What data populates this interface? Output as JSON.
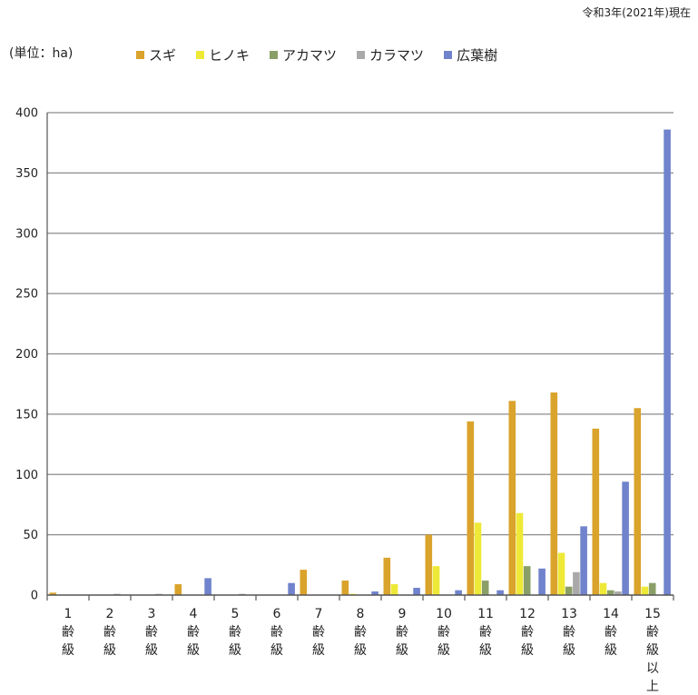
{
  "header": {
    "date_note": "令和3年(2021年)現在",
    "unit_label": "(単位：ha)"
  },
  "chart_data": {
    "type": "bar",
    "ylim": [
      0,
      400
    ],
    "yticks": [
      0,
      50,
      100,
      150,
      200,
      250,
      300,
      350,
      400
    ],
    "grid": true,
    "legend_position": "top",
    "categories": [
      [
        "1",
        "齢",
        "級"
      ],
      [
        "2",
        "齢",
        "級"
      ],
      [
        "3",
        "齢",
        "級"
      ],
      [
        "4",
        "齢",
        "級"
      ],
      [
        "5",
        "齢",
        "級"
      ],
      [
        "6",
        "齢",
        "級"
      ],
      [
        "7",
        "齢",
        "級"
      ],
      [
        "8",
        "齢",
        "級"
      ],
      [
        "9",
        "齢",
        "級"
      ],
      [
        "10",
        "齢",
        "級"
      ],
      [
        "11",
        "齢",
        "級"
      ],
      [
        "12",
        "齢",
        "級"
      ],
      [
        "13",
        "齢",
        "級"
      ],
      [
        "14",
        "齢",
        "級"
      ],
      [
        "15",
        "齢",
        "級",
        "以",
        "上"
      ]
    ],
    "series": [
      {
        "name": "スギ",
        "color": "#DAA32B",
        "values": [
          2,
          0,
          0,
          9,
          0,
          0,
          21,
          12,
          31,
          50,
          144,
          161,
          168,
          138,
          155
        ]
      },
      {
        "name": "ヒノキ",
        "color": "#EEE937",
        "values": [
          0,
          0,
          0,
          0,
          0,
          0,
          0,
          1,
          9,
          24,
          60,
          68,
          35,
          10,
          7
        ]
      },
      {
        "name": "アカマツ",
        "color": "#8A9F67",
        "values": [
          0,
          0,
          0,
          0,
          0,
          0,
          0,
          0,
          0,
          0,
          12,
          24,
          7,
          4,
          10
        ]
      },
      {
        "name": "カラマツ",
        "color": "#A9A9A9",
        "values": [
          0,
          1,
          1,
          0,
          1,
          0,
          0,
          0,
          0,
          0,
          0,
          0,
          19,
          3,
          0
        ]
      },
      {
        "name": "広葉樹",
        "color": "#7083CC",
        "values": [
          0,
          0,
          0,
          14,
          0,
          10,
          0,
          3,
          6,
          4,
          4,
          22,
          57,
          94,
          386
        ]
      }
    ]
  }
}
